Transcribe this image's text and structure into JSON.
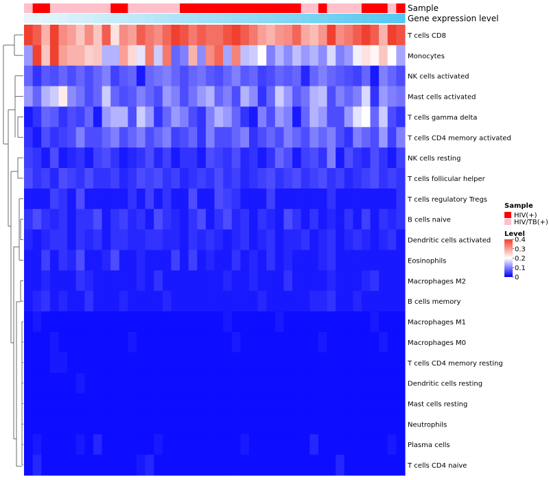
{
  "chart_data": {
    "type": "heatmap",
    "title": "",
    "annotation_tracks": [
      "Sample",
      "Gene expression level"
    ],
    "rows": [
      "T cells CD8",
      "Monocytes",
      "NK cells activated",
      "Mast cells activated",
      "T cells gamma delta",
      "T cells CD4 memory activated",
      "NK cells resting",
      "T cells follicular helper",
      "T cells regulatory  Tregs",
      "B cells naive",
      "Dendritic cells activated",
      "Eosinophils",
      "Macrophages M2",
      "B cells memory",
      "Macrophages M1",
      "Macrophages M0",
      "T cells CD4 memory resting",
      "Dendritic cells resting",
      "Mast cells resting",
      "Neutrophils",
      "Plasma cells",
      "T cells CD4 naive"
    ],
    "n_columns": 44,
    "sample_groups": [
      1,
      0,
      0,
      1,
      1,
      1,
      1,
      1,
      1,
      1,
      0,
      0,
      1,
      1,
      1,
      1,
      1,
      1,
      0,
      0,
      0,
      0,
      0,
      0,
      0,
      0,
      0,
      0,
      0,
      0,
      0,
      0,
      1,
      1,
      0,
      1,
      1,
      1,
      1,
      0,
      0,
      0,
      1,
      0
    ],
    "gene_expression_level": [
      0.0,
      0.02,
      0.05,
      0.07,
      0.09,
      0.12,
      0.14,
      0.16,
      0.19,
      0.21,
      0.23,
      0.26,
      0.28,
      0.3,
      0.33,
      0.35,
      0.37,
      0.4,
      0.42,
      0.44,
      0.47,
      0.49,
      0.51,
      0.53,
      0.56,
      0.58,
      0.6,
      0.63,
      0.65,
      0.67,
      0.7,
      0.72,
      0.74,
      0.77,
      0.79,
      0.81,
      0.84,
      0.86,
      0.88,
      0.91,
      0.93,
      0.95,
      0.98,
      1.0
    ],
    "values": [
      [
        0.4,
        0.37,
        0.28,
        0.4,
        0.32,
        0.3,
        0.26,
        0.32,
        0.26,
        0.37,
        0.23,
        0.32,
        0.3,
        0.37,
        0.34,
        0.32,
        0.36,
        0.4,
        0.38,
        0.34,
        0.37,
        0.35,
        0.35,
        0.38,
        0.42,
        0.37,
        0.34,
        0.3,
        0.28,
        0.31,
        0.32,
        0.36,
        0.29,
        0.27,
        0.31,
        0.4,
        0.32,
        0.34,
        0.37,
        0.42,
        0.37,
        0.28,
        0.4,
        0.38
      ],
      [
        0.12,
        0.4,
        0.26,
        0.42,
        0.3,
        0.28,
        0.28,
        0.25,
        0.26,
        0.14,
        0.14,
        0.3,
        0.24,
        0.18,
        0.34,
        0.16,
        0.34,
        0.08,
        0.1,
        0.28,
        0.11,
        0.32,
        0.36,
        0.13,
        0.33,
        0.15,
        0.16,
        0.2,
        0.1,
        0.14,
        0.11,
        0.15,
        0.12,
        0.14,
        0.11,
        0.17,
        0.1,
        0.12,
        0.19,
        0.23,
        0.21,
        0.26,
        0.2,
        0.13
      ],
      [
        0.08,
        0.04,
        0.07,
        0.06,
        0.08,
        0.06,
        0.08,
        0.06,
        0.08,
        0.1,
        0.05,
        0.07,
        0.08,
        0.02,
        0.08,
        0.09,
        0.1,
        0.08,
        0.06,
        0.08,
        0.09,
        0.07,
        0.06,
        0.08,
        0.1,
        0.07,
        0.08,
        0.05,
        0.06,
        0.08,
        0.07,
        0.08,
        0.03,
        0.08,
        0.1,
        0.08,
        0.07,
        0.06,
        0.05,
        0.08,
        0.02,
        0.1,
        0.08,
        0.06
      ],
      [
        0.12,
        0.08,
        0.14,
        0.16,
        0.22,
        0.11,
        0.09,
        0.06,
        0.08,
        0.16,
        0.08,
        0.06,
        0.07,
        0.1,
        0.08,
        0.06,
        0.12,
        0.1,
        0.06,
        0.09,
        0.12,
        0.14,
        0.08,
        0.1,
        0.06,
        0.14,
        0.11,
        0.04,
        0.08,
        0.16,
        0.12,
        0.07,
        0.09,
        0.14,
        0.15,
        0.06,
        0.1,
        0.08,
        0.1,
        0.17,
        0.04,
        0.12,
        0.1,
        0.09
      ],
      [
        0.02,
        0.04,
        0.08,
        0.07,
        0.04,
        0.06,
        0.05,
        0.08,
        0.02,
        0.12,
        0.14,
        0.14,
        0.06,
        0.16,
        0.12,
        0.04,
        0.08,
        0.12,
        0.1,
        0.06,
        0.04,
        0.1,
        0.14,
        0.12,
        0.08,
        0.04,
        0.02,
        0.1,
        0.06,
        0.12,
        0.1,
        0.02,
        0.08,
        0.14,
        0.12,
        0.06,
        0.06,
        0.12,
        0.18,
        0.2,
        0.08,
        0.16,
        0.06,
        0.04
      ],
      [
        0.04,
        0.02,
        0.06,
        0.04,
        0.05,
        0.06,
        0.1,
        0.06,
        0.06,
        0.08,
        0.1,
        0.06,
        0.08,
        0.1,
        0.06,
        0.08,
        0.1,
        0.05,
        0.06,
        0.08,
        0.04,
        0.1,
        0.06,
        0.06,
        0.08,
        0.1,
        0.04,
        0.06,
        0.08,
        0.06,
        0.1,
        0.08,
        0.06,
        0.1,
        0.08,
        0.1,
        0.06,
        0.04,
        0.1,
        0.08,
        0.06,
        0.12,
        0.05,
        0.1
      ],
      [
        0.05,
        0.04,
        0.02,
        0.06,
        0.02,
        0.03,
        0.04,
        0.02,
        0.05,
        0.06,
        0.04,
        0.02,
        0.03,
        0.04,
        0.06,
        0.03,
        0.05,
        0.02,
        0.04,
        0.04,
        0.02,
        0.06,
        0.05,
        0.04,
        0.06,
        0.03,
        0.04,
        0.02,
        0.04,
        0.08,
        0.06,
        0.02,
        0.05,
        0.06,
        0.04,
        0.1,
        0.02,
        0.06,
        0.04,
        0.03,
        0.06,
        0.04,
        0.02,
        0.05
      ],
      [
        0.06,
        0.04,
        0.05,
        0.03,
        0.06,
        0.05,
        0.04,
        0.06,
        0.04,
        0.04,
        0.05,
        0.03,
        0.04,
        0.06,
        0.05,
        0.06,
        0.04,
        0.05,
        0.03,
        0.04,
        0.05,
        0.04,
        0.06,
        0.04,
        0.05,
        0.03,
        0.04,
        0.05,
        0.06,
        0.04,
        0.05,
        0.06,
        0.04,
        0.05,
        0.06,
        0.04,
        0.05,
        0.03,
        0.04,
        0.05,
        0.06,
        0.04,
        0.05,
        0.04
      ],
      [
        0.02,
        0.02,
        0.02,
        0.05,
        0.04,
        0.02,
        0.06,
        0.02,
        0.02,
        0.02,
        0.02,
        0.02,
        0.04,
        0.02,
        0.05,
        0.02,
        0.04,
        0.02,
        0.02,
        0.06,
        0.02,
        0.02,
        0.06,
        0.05,
        0.04,
        0.02,
        0.02,
        0.02,
        0.05,
        0.02,
        0.02,
        0.02,
        0.02,
        0.02,
        0.02,
        0.04,
        0.02,
        0.02,
        0.02,
        0.02,
        0.02,
        0.02,
        0.02,
        0.04
      ],
      [
        0.04,
        0.06,
        0.04,
        0.03,
        0.04,
        0.02,
        0.04,
        0.04,
        0.06,
        0.02,
        0.04,
        0.05,
        0.03,
        0.04,
        0.02,
        0.06,
        0.04,
        0.03,
        0.02,
        0.04,
        0.06,
        0.02,
        0.04,
        0.06,
        0.03,
        0.04,
        0.02,
        0.04,
        0.03,
        0.02,
        0.06,
        0.04,
        0.02,
        0.04,
        0.02,
        0.03,
        0.02,
        0.04,
        0.02,
        0.05,
        0.02,
        0.04,
        0.03,
        0.04
      ],
      [
        0.03,
        0.02,
        0.03,
        0.04,
        0.04,
        0.02,
        0.04,
        0.03,
        0.04,
        0.02,
        0.04,
        0.04,
        0.03,
        0.03,
        0.04,
        0.04,
        0.03,
        0.03,
        0.02,
        0.04,
        0.03,
        0.04,
        0.03,
        0.02,
        0.03,
        0.04,
        0.02,
        0.03,
        0.04,
        0.02,
        0.03,
        0.03,
        0.04,
        0.02,
        0.03,
        0.04,
        0.02,
        0.03,
        0.04,
        0.03,
        0.02,
        0.03,
        0.04,
        0.02
      ],
      [
        0.02,
        0.02,
        0.05,
        0.02,
        0.04,
        0.03,
        0.06,
        0.02,
        0.02,
        0.03,
        0.06,
        0.02,
        0.02,
        0.03,
        0.02,
        0.02,
        0.02,
        0.05,
        0.02,
        0.05,
        0.02,
        0.03,
        0.02,
        0.02,
        0.04,
        0.02,
        0.03,
        0.02,
        0.04,
        0.02,
        0.03,
        0.02,
        0.02,
        0.02,
        0.03,
        0.04,
        0.02,
        0.02,
        0.02,
        0.02,
        0.02,
        0.02,
        0.02,
        0.02
      ],
      [
        0.02,
        0.02,
        0.03,
        0.02,
        0.02,
        0.02,
        0.04,
        0.03,
        0.02,
        0.02,
        0.02,
        0.02,
        0.02,
        0.03,
        0.02,
        0.04,
        0.02,
        0.02,
        0.02,
        0.02,
        0.02,
        0.02,
        0.02,
        0.03,
        0.02,
        0.02,
        0.03,
        0.02,
        0.02,
        0.02,
        0.04,
        0.02,
        0.02,
        0.02,
        0.02,
        0.03,
        0.02,
        0.02,
        0.02,
        0.03,
        0.04,
        0.02,
        0.02,
        0.02
      ],
      [
        0.02,
        0.03,
        0.04,
        0.02,
        0.03,
        0.02,
        0.02,
        0.04,
        0.02,
        0.02,
        0.02,
        0.03,
        0.02,
        0.02,
        0.02,
        0.02,
        0.03,
        0.02,
        0.02,
        0.02,
        0.02,
        0.02,
        0.02,
        0.02,
        0.02,
        0.02,
        0.02,
        0.03,
        0.02,
        0.02,
        0.02,
        0.02,
        0.02,
        0.03,
        0.03,
        0.04,
        0.02,
        0.02,
        0.03,
        0.02,
        0.02,
        0.02,
        0.02,
        0.02
      ],
      [
        0.01,
        0.02,
        0.01,
        0.01,
        0.01,
        0.01,
        0.01,
        0.01,
        0.01,
        0.01,
        0.01,
        0.01,
        0.01,
        0.01,
        0.01,
        0.01,
        0.01,
        0.01,
        0.01,
        0.01,
        0.01,
        0.01,
        0.01,
        0.02,
        0.01,
        0.01,
        0.01,
        0.01,
        0.01,
        0.02,
        0.01,
        0.01,
        0.01,
        0.01,
        0.01,
        0.01,
        0.01,
        0.01,
        0.01,
        0.01,
        0.02,
        0.01,
        0.01,
        0.01
      ],
      [
        0.01,
        0.01,
        0.01,
        0.02,
        0.01,
        0.01,
        0.01,
        0.01,
        0.01,
        0.01,
        0.01,
        0.01,
        0.02,
        0.01,
        0.01,
        0.01,
        0.01,
        0.01,
        0.01,
        0.01,
        0.01,
        0.01,
        0.01,
        0.01,
        0.02,
        0.01,
        0.01,
        0.01,
        0.01,
        0.01,
        0.01,
        0.01,
        0.01,
        0.01,
        0.02,
        0.01,
        0.01,
        0.01,
        0.01,
        0.01,
        0.01,
        0.02,
        0.01,
        0.01
      ],
      [
        0.01,
        0.01,
        0.01,
        0.02,
        0.02,
        0.01,
        0.01,
        0.01,
        0.01,
        0.01,
        0.01,
        0.01,
        0.01,
        0.01,
        0.01,
        0.01,
        0.01,
        0.01,
        0.01,
        0.01,
        0.01,
        0.01,
        0.01,
        0.01,
        0.01,
        0.01,
        0.01,
        0.01,
        0.01,
        0.01,
        0.01,
        0.01,
        0.01,
        0.01,
        0.01,
        0.01,
        0.01,
        0.01,
        0.01,
        0.01,
        0.01,
        0.01,
        0.01,
        0.01
      ],
      [
        0.01,
        0.01,
        0.01,
        0.01,
        0.01,
        0.01,
        0.02,
        0.01,
        0.01,
        0.01,
        0.01,
        0.01,
        0.01,
        0.01,
        0.01,
        0.01,
        0.01,
        0.01,
        0.01,
        0.01,
        0.01,
        0.01,
        0.01,
        0.01,
        0.01,
        0.01,
        0.01,
        0.01,
        0.01,
        0.01,
        0.01,
        0.01,
        0.01,
        0.01,
        0.01,
        0.01,
        0.01,
        0.01,
        0.01,
        0.01,
        0.01,
        0.01,
        0.01,
        0.01
      ],
      [
        0.01,
        0.01,
        0.01,
        0.01,
        0.01,
        0.01,
        0.01,
        0.01,
        0.01,
        0.01,
        0.01,
        0.01,
        0.01,
        0.01,
        0.01,
        0.01,
        0.01,
        0.01,
        0.01,
        0.01,
        0.01,
        0.01,
        0.01,
        0.01,
        0.01,
        0.01,
        0.01,
        0.01,
        0.01,
        0.01,
        0.01,
        0.01,
        0.01,
        0.01,
        0.01,
        0.01,
        0.01,
        0.01,
        0.01,
        0.01,
        0.01,
        0.01,
        0.01,
        0.01
      ],
      [
        0.01,
        0.01,
        0.01,
        0.01,
        0.01,
        0.01,
        0.01,
        0.01,
        0.01,
        0.01,
        0.01,
        0.01,
        0.01,
        0.01,
        0.01,
        0.01,
        0.01,
        0.01,
        0.01,
        0.01,
        0.01,
        0.01,
        0.01,
        0.01,
        0.01,
        0.01,
        0.01,
        0.01,
        0.01,
        0.01,
        0.01,
        0.01,
        0.01,
        0.01,
        0.01,
        0.01,
        0.01,
        0.01,
        0.01,
        0.01,
        0.01,
        0.01,
        0.01,
        0.01
      ],
      [
        0.01,
        0.02,
        0.01,
        0.01,
        0.01,
        0.01,
        0.02,
        0.01,
        0.03,
        0.01,
        0.01,
        0.01,
        0.01,
        0.01,
        0.01,
        0.02,
        0.01,
        0.01,
        0.01,
        0.01,
        0.01,
        0.01,
        0.01,
        0.01,
        0.01,
        0.02,
        0.01,
        0.01,
        0.01,
        0.01,
        0.01,
        0.01,
        0.01,
        0.03,
        0.01,
        0.01,
        0.01,
        0.01,
        0.01,
        0.01,
        0.01,
        0.01,
        0.02,
        0.01
      ],
      [
        0.01,
        0.03,
        0.01,
        0.01,
        0.01,
        0.01,
        0.01,
        0.01,
        0.01,
        0.01,
        0.01,
        0.01,
        0.01,
        0.02,
        0.03,
        0.01,
        0.01,
        0.01,
        0.01,
        0.01,
        0.01,
        0.01,
        0.01,
        0.01,
        0.01,
        0.01,
        0.01,
        0.01,
        0.01,
        0.01,
        0.01,
        0.01,
        0.01,
        0.01,
        0.01,
        0.01,
        0.03,
        0.01,
        0.01,
        0.01,
        0.01,
        0.01,
        0.01,
        0.01
      ]
    ],
    "color_scale": {
      "min": 0,
      "mid": 0.2,
      "max": 0.4,
      "low_color": "#0000FF",
      "mid_color": "#FFFFFF",
      "high_color": "#F04030"
    },
    "legend": {
      "sample_title": "Sample",
      "sample_entries": [
        {
          "label": "HIV(+)",
          "color": "#FF0000"
        },
        {
          "label": "HIV/TB(+)",
          "color": "#FFC0CB"
        }
      ],
      "level_title": "Level",
      "level_ticks": [
        "0.4",
        "0.3",
        "0.2",
        "0.1",
        "0"
      ],
      "position": "right"
    },
    "annotation_colors": {
      "sample_low": "#FFFFFF",
      "expr_low": "#E8F6FC",
      "expr_high": "#56C8F0"
    }
  }
}
